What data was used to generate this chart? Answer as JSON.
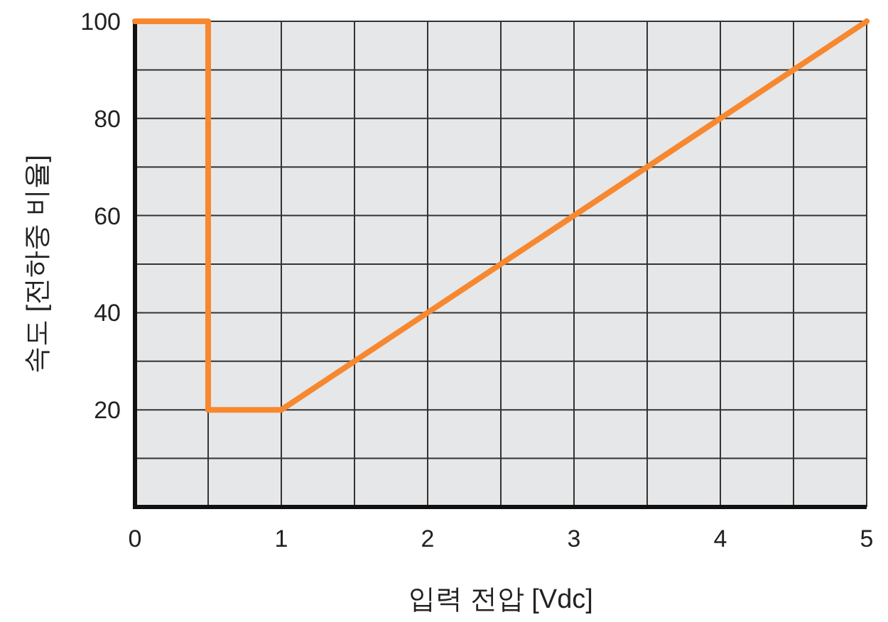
{
  "chart_data": {
    "type": "line",
    "xlabel": "입력 전압 [Vdc]",
    "ylabel": "속도 [전하중 비율]",
    "x": [
      0,
      0.5,
      0.5,
      1,
      5
    ],
    "series": [
      {
        "color": "#f7882f",
        "values": [
          100,
          100,
          20,
          20,
          100
        ]
      }
    ],
    "xlim": [
      0,
      5
    ],
    "ylim": [
      0,
      100
    ],
    "xticks": [
      0,
      {
        "value": 0.5,
        "label": null
      },
      1,
      {
        "value": 1.5,
        "label": null
      },
      2,
      {
        "value": 2.5,
        "label": null
      },
      3,
      {
        "value": 3.5,
        "label": null
      },
      4,
      {
        "value": 4.5,
        "label": null
      },
      5
    ],
    "yticks": [
      {
        "value": 10,
        "label": null
      },
      20,
      {
        "value": 30,
        "label": null
      },
      40,
      {
        "value": 50,
        "label": null
      },
      60,
      {
        "value": 70,
        "label": null
      },
      80,
      {
        "value": 90,
        "label": null
      },
      100
    ],
    "grid": true,
    "marker": "none",
    "line_style": "solid"
  }
}
